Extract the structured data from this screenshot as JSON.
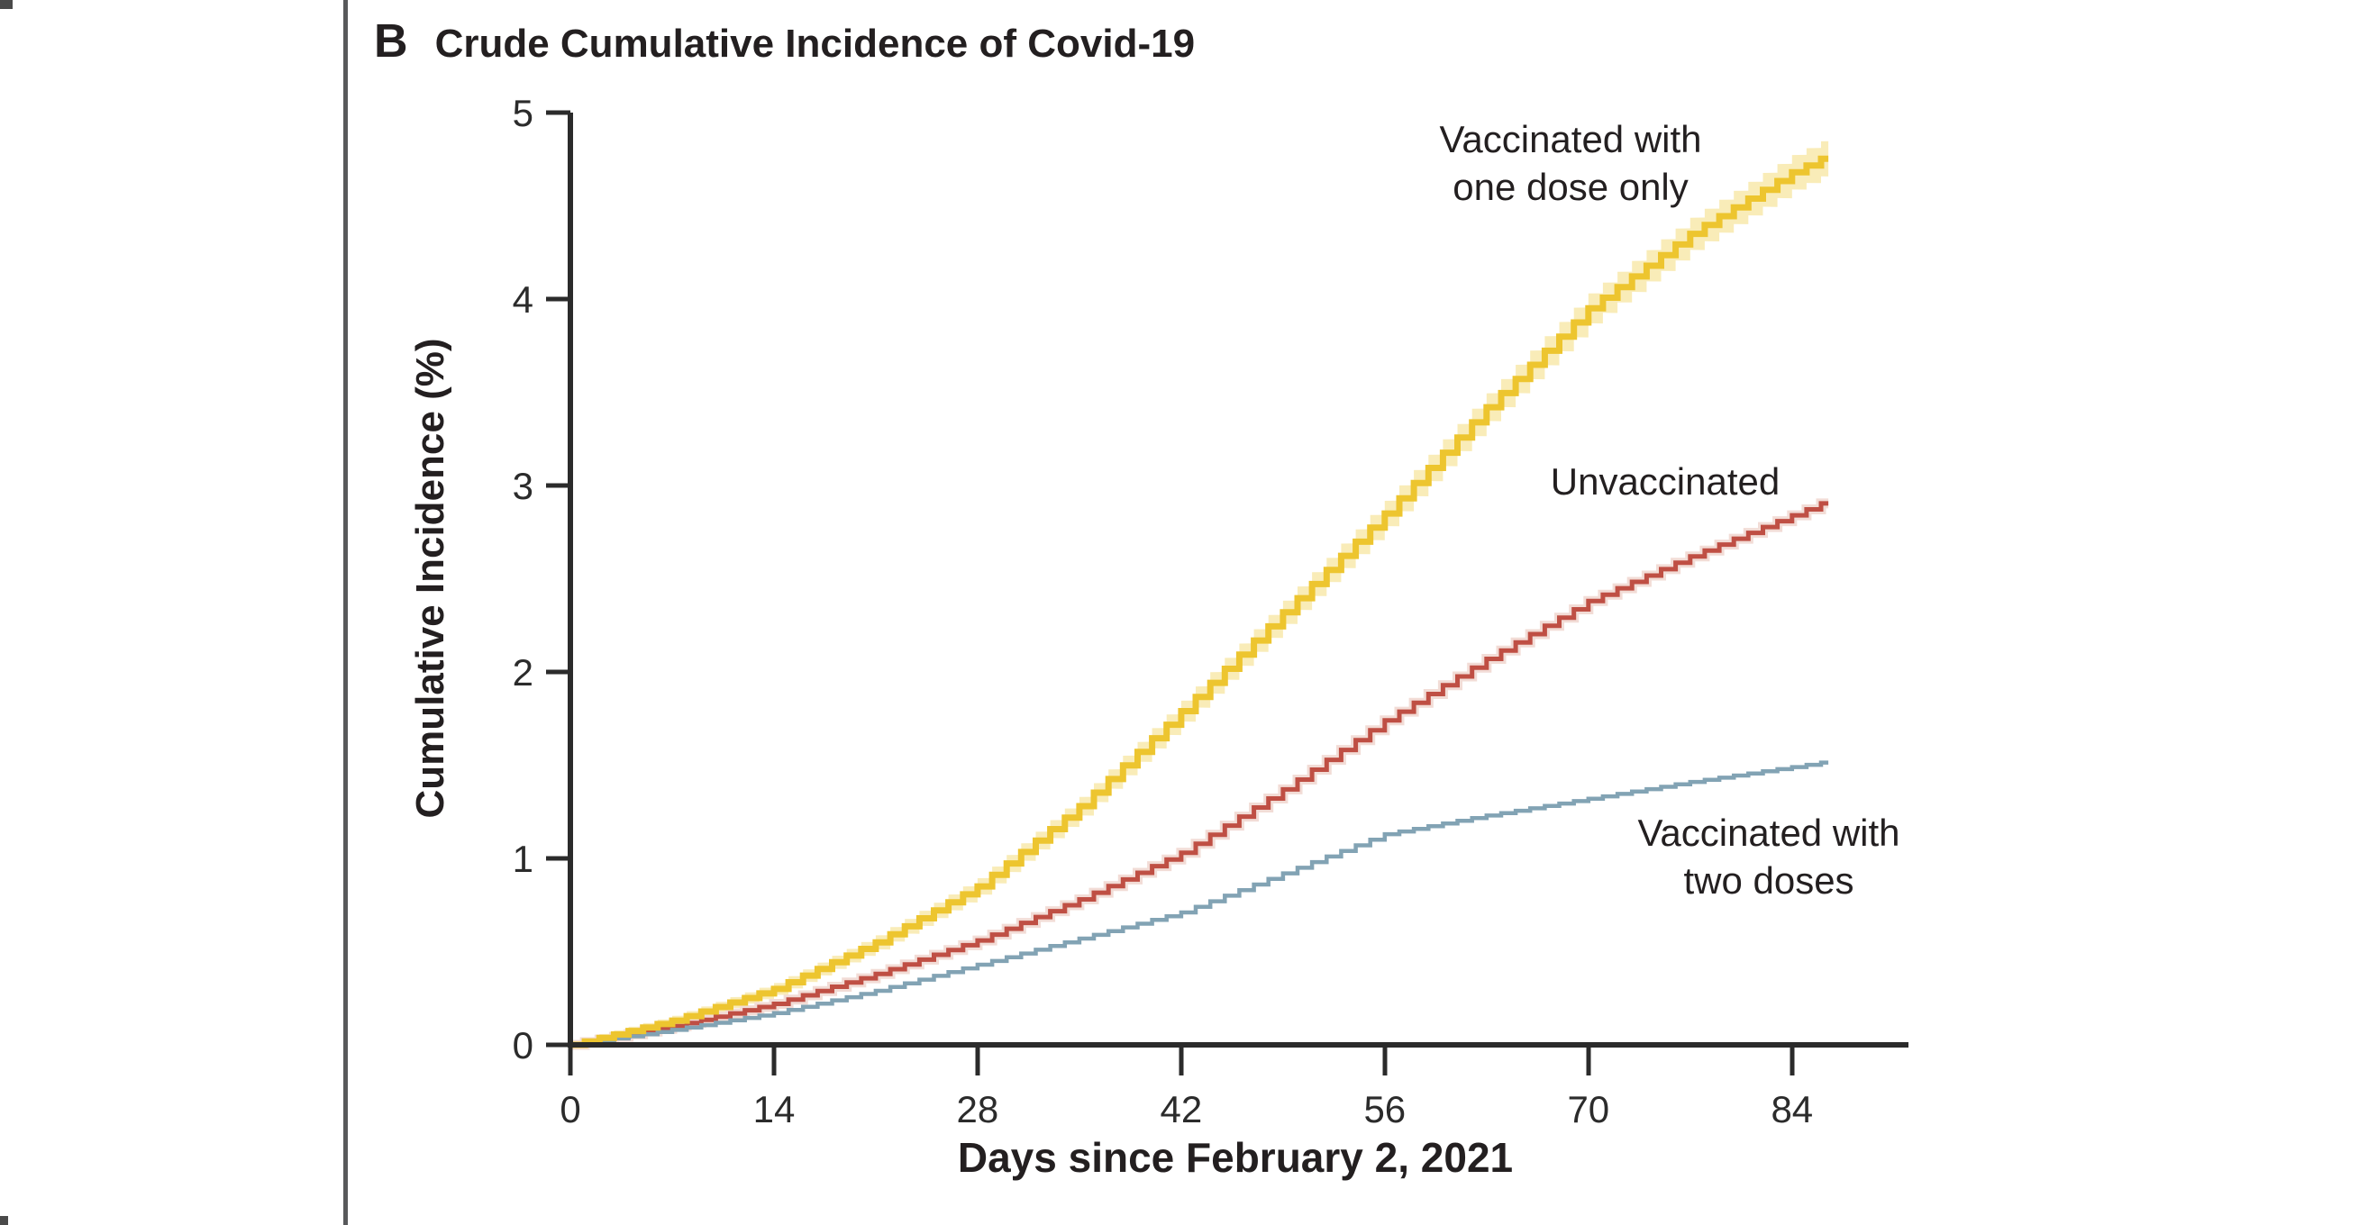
{
  "page": {
    "panel_letter": "B",
    "title": "Crude Cumulative Incidence of Covid-19"
  },
  "chart_data": {
    "type": "line",
    "line_style": "step (cumulative incidence / Kaplan-Meier style staircase, one step per day)",
    "title": "Crude Cumulative Incidence of Covid-19",
    "xlabel": "Days since February 2, 2021",
    "ylabel": "Cumulative Incidence (%)",
    "xlim": [
      0,
      92
    ],
    "ylim": [
      0,
      5
    ],
    "x_ticks": [
      0,
      14,
      28,
      42,
      56,
      70,
      84
    ],
    "y_ticks": [
      0,
      1,
      2,
      3,
      4,
      5
    ],
    "grid": false,
    "legend_position": "direct labels annotated on plot",
    "sample_days": [
      0,
      7,
      14,
      21,
      28,
      35,
      42,
      49,
      56,
      63,
      70,
      77,
      84,
      86.5
    ],
    "series": [
      {
        "name": "Vaccinated with one dose only",
        "color": "#EDC52F",
        "band_color": "#F9ECB8",
        "has_confidence_band": true,
        "values": [
          0,
          0.13,
          0.3,
          0.55,
          0.85,
          1.28,
          1.79,
          2.32,
          2.85,
          3.42,
          3.95,
          4.35,
          4.68,
          4.77
        ]
      },
      {
        "name": "Unvaccinated",
        "color": "#BF4F44",
        "halo_color": "#F2DCD6",
        "has_confidence_band": false,
        "values": [
          0,
          0.1,
          0.22,
          0.38,
          0.56,
          0.78,
          1.03,
          1.37,
          1.74,
          2.07,
          2.38,
          2.62,
          2.84,
          2.92
        ]
      },
      {
        "name": "Vaccinated with two doses",
        "color": "#82A3B4",
        "has_confidence_band": false,
        "values": [
          0,
          0.08,
          0.17,
          0.29,
          0.43,
          0.57,
          0.71,
          0.92,
          1.13,
          1.23,
          1.32,
          1.41,
          1.49,
          1.52
        ]
      }
    ],
    "annotations": [
      {
        "line1": "Vaccinated with",
        "line2": "one dose only"
      },
      {
        "line1": "Unvaccinated",
        "line2": ""
      },
      {
        "line1": "Vaccinated with",
        "line2": "two doses"
      }
    ],
    "axis_color": "#2B2B2B",
    "text_color": "#2B2B2B"
  },
  "decor": {
    "divider_color": "#58595B"
  }
}
